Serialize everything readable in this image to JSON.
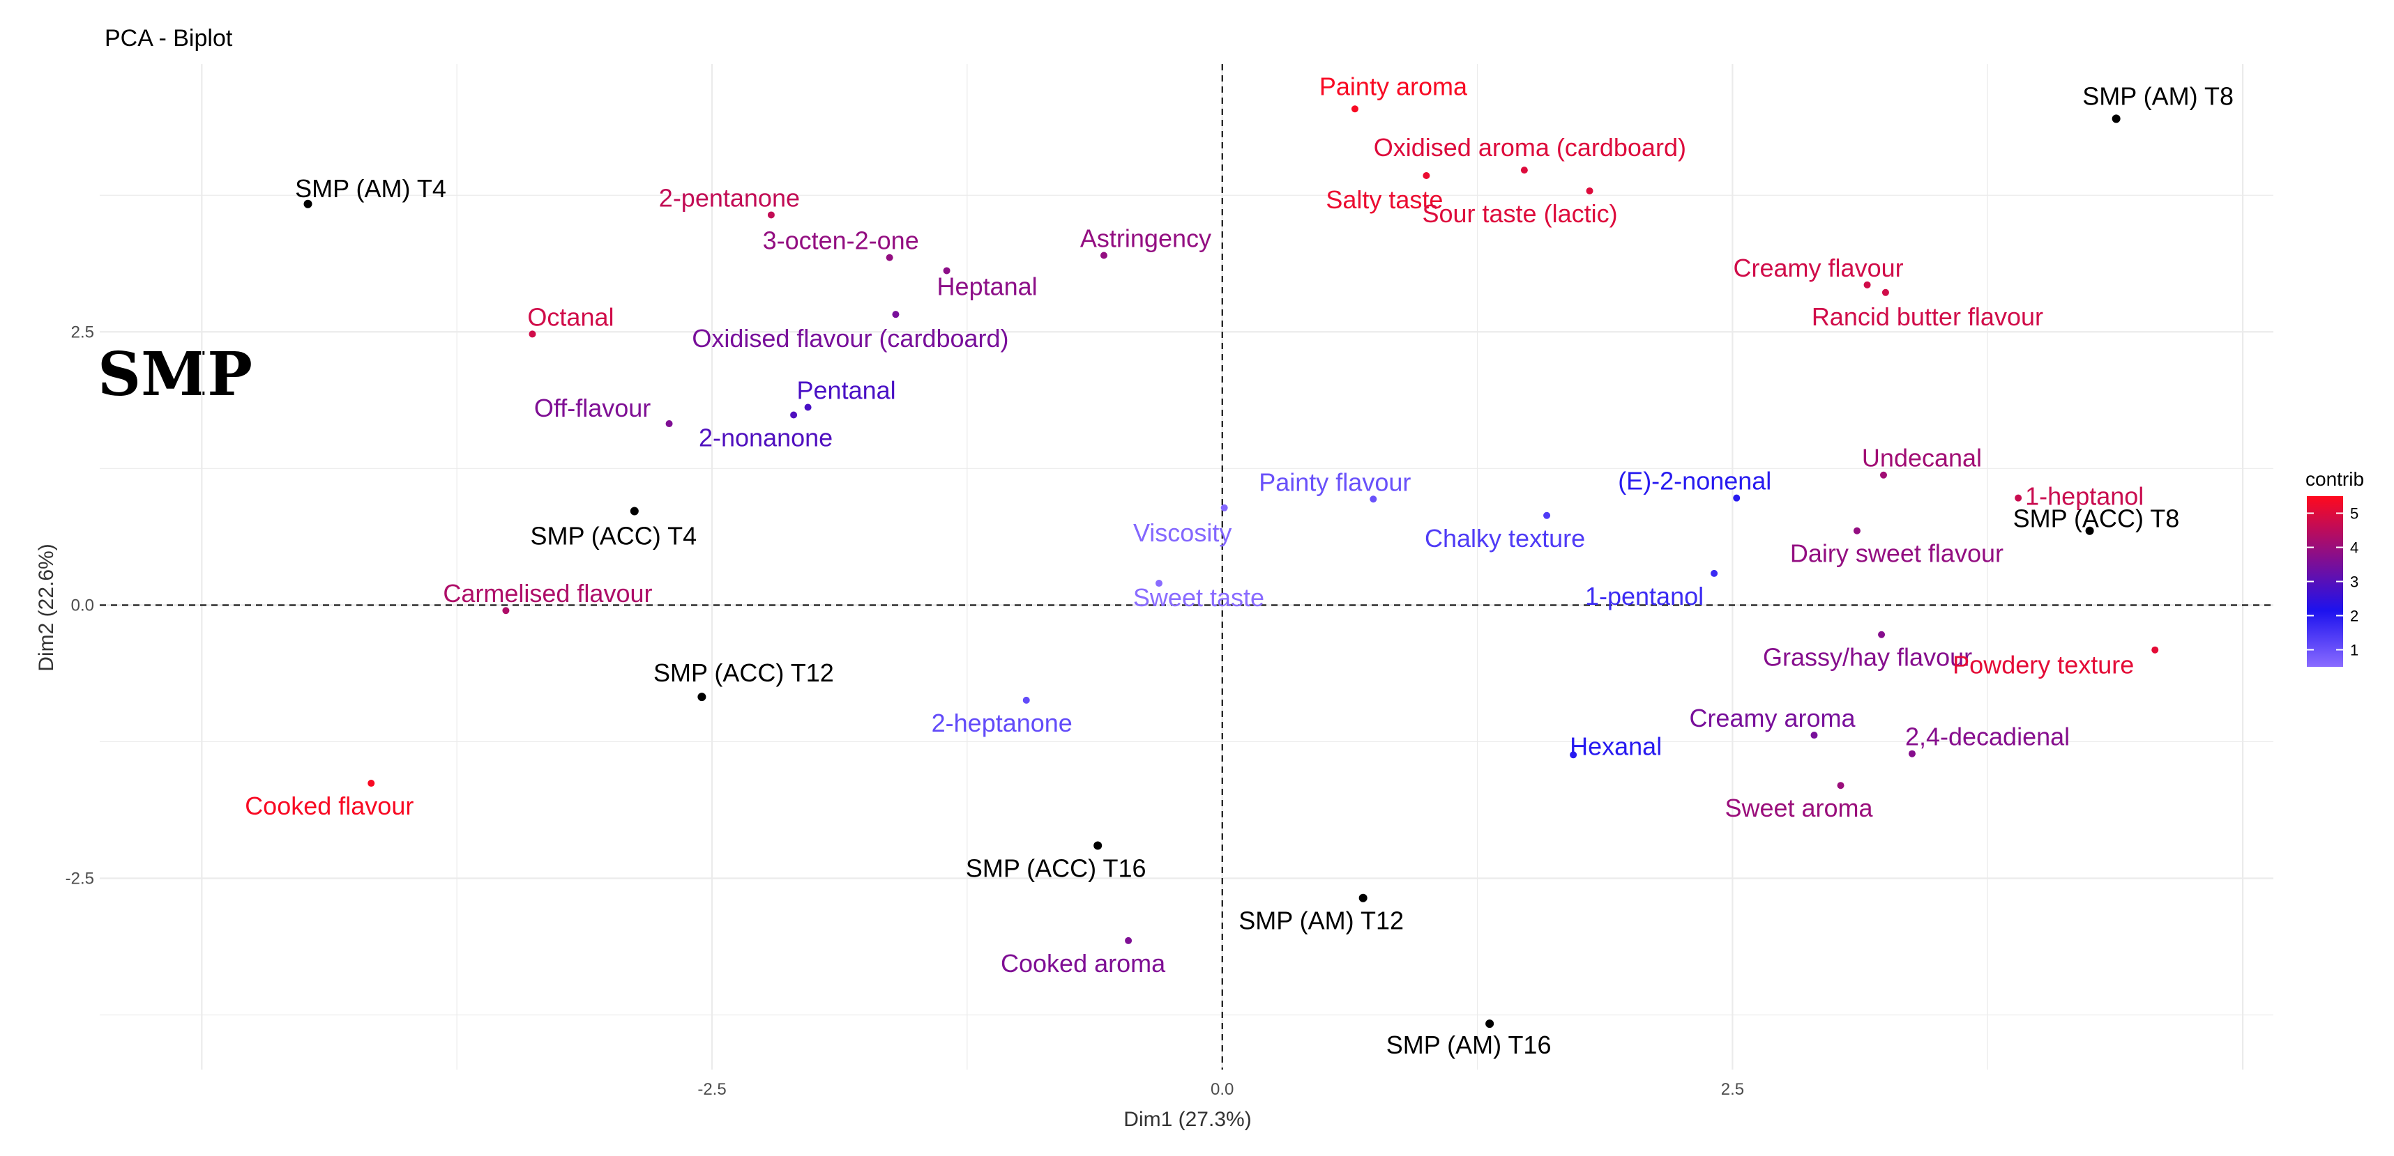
{
  "chart_data": {
    "type": "scatter",
    "title": "PCA - Biplot",
    "tag": "SMP",
    "xlabel": "Dim1 (27.3%)",
    "ylabel": "Dim2 (22.6%)",
    "xlim": [
      -5.5,
      5.15
    ],
    "ylim": [
      -4.25,
      4.95
    ],
    "x_ticks": [
      -2.5,
      0.0,
      2.5
    ],
    "y_ticks": [
      -2.5,
      0.0,
      2.5
    ],
    "grid": true,
    "reference_lines": {
      "x": 0,
      "y": 0,
      "style": "dashed"
    },
    "legend": {
      "title": "contrib",
      "ticks": [
        1,
        2,
        3,
        4,
        5
      ],
      "range": [
        0.5,
        5.5
      ],
      "position": "right"
    },
    "colors": {
      "individual": "#000000",
      "gradient_low": "#8a6cff",
      "gradient_mid": "#1d12ee",
      "gradient_high": "#ff0a1d"
    },
    "individuals": [
      {
        "label": "SMP (AM) T4",
        "x": -4.48,
        "y": 3.67
      },
      {
        "label": "SMP (AM) T8",
        "x": 4.38,
        "y": 4.45
      },
      {
        "label": "SMP (ACC) T4",
        "x": -2.88,
        "y": 0.86
      },
      {
        "label": "SMP (ACC) T8",
        "x": 4.25,
        "y": 0.68
      },
      {
        "label": "SMP (ACC) T12",
        "x": -2.55,
        "y": -0.84
      },
      {
        "label": "SMP (ACC) T16",
        "x": -0.61,
        "y": -2.2
      },
      {
        "label": "SMP (AM) T12",
        "x": 0.69,
        "y": -2.68
      },
      {
        "label": "SMP (AM) T16",
        "x": 1.31,
        "y": -3.83
      }
    ],
    "variables": [
      {
        "label": "Painty aroma",
        "x": 0.65,
        "y": 4.54,
        "contrib": 5.4
      },
      {
        "label": "Oxidised aroma (cardboard)",
        "x": 1.48,
        "y": 3.98,
        "contrib": 5.0
      },
      {
        "label": "Salty taste",
        "x": 1.0,
        "y": 3.93,
        "contrib": 5.2
      },
      {
        "label": "Sour taste (lactic)",
        "x": 1.8,
        "y": 3.79,
        "contrib": 5.0
      },
      {
        "label": "2-pentanone",
        "x": -2.21,
        "y": 3.57,
        "contrib": 4.6
      },
      {
        "label": "3-octen-2-one",
        "x": -1.63,
        "y": 3.18,
        "contrib": 3.9
      },
      {
        "label": "Heptanal",
        "x": -1.35,
        "y": 3.06,
        "contrib": 3.8
      },
      {
        "label": "Astringency",
        "x": -0.58,
        "y": 3.2,
        "contrib": 3.9
      },
      {
        "label": "Creamy flavour",
        "x": 3.16,
        "y": 2.93,
        "contrib": 4.8
      },
      {
        "label": "Rancid butter flavour",
        "x": 3.25,
        "y": 2.86,
        "contrib": 4.8
      },
      {
        "label": "Octanal",
        "x": -3.38,
        "y": 2.48,
        "contrib": 4.8
      },
      {
        "label": "Oxidised flavour (cardboard)",
        "x": -1.6,
        "y": 2.66,
        "contrib": 3.5
      },
      {
        "label": "Pentanal",
        "x": -2.03,
        "y": 1.81,
        "contrib": 2.8
      },
      {
        "label": "2-nonanone",
        "x": -2.1,
        "y": 1.74,
        "contrib": 2.9
      },
      {
        "label": "Off-flavour",
        "x": -2.71,
        "y": 1.66,
        "contrib": 3.6
      },
      {
        "label": "Undecanal",
        "x": 3.24,
        "y": 1.19,
        "contrib": 4.1
      },
      {
        "label": "1-heptanol",
        "x": 3.9,
        "y": 0.98,
        "contrib": 4.7
      },
      {
        "label": "Painty flavour",
        "x": 0.74,
        "y": 0.97,
        "contrib": 1.0
      },
      {
        "label": "(E)-2-nonenal",
        "x": 2.52,
        "y": 0.98,
        "contrib": 2.0
      },
      {
        "label": "Chalky texture",
        "x": 1.59,
        "y": 0.82,
        "contrib": 1.4
      },
      {
        "label": "Viscosity",
        "x": 0.01,
        "y": 0.89,
        "contrib": 0.6
      },
      {
        "label": "Dairy sweet flavour",
        "x": 3.11,
        "y": 0.68,
        "contrib": 3.9
      },
      {
        "label": "Sweet taste",
        "x": -0.31,
        "y": 0.2,
        "contrib": 0.5
      },
      {
        "label": "1-pentanol",
        "x": 2.41,
        "y": 0.29,
        "contrib": 1.7
      },
      {
        "label": "Carmelised flavour",
        "x": -3.51,
        "y": -0.05,
        "contrib": 4.3
      },
      {
        "label": "Grassy/hay flavour",
        "x": 3.23,
        "y": -0.27,
        "contrib": 3.7
      },
      {
        "label": "Powdery texture",
        "x": 4.57,
        "y": -0.41,
        "contrib": 5.1
      },
      {
        "label": "2-heptanone",
        "x": -0.96,
        "y": -0.87,
        "contrib": 1.1
      },
      {
        "label": "Creamy aroma",
        "x": 2.9,
        "y": -1.19,
        "contrib": 3.5
      },
      {
        "label": "Hexanal",
        "x": 1.72,
        "y": -1.37,
        "contrib": 2.0
      },
      {
        "label": "2,4-decadienal",
        "x": 3.38,
        "y": -1.36,
        "contrib": 3.7
      },
      {
        "label": "Sweet aroma",
        "x": 3.03,
        "y": -1.65,
        "contrib": 4.0
      },
      {
        "label": "Cooked flavour",
        "x": -4.17,
        "y": -1.63,
        "contrib": 5.4
      },
      {
        "label": "Cooked aroma",
        "x": -0.46,
        "y": -3.07,
        "contrib": 3.6
      }
    ]
  }
}
